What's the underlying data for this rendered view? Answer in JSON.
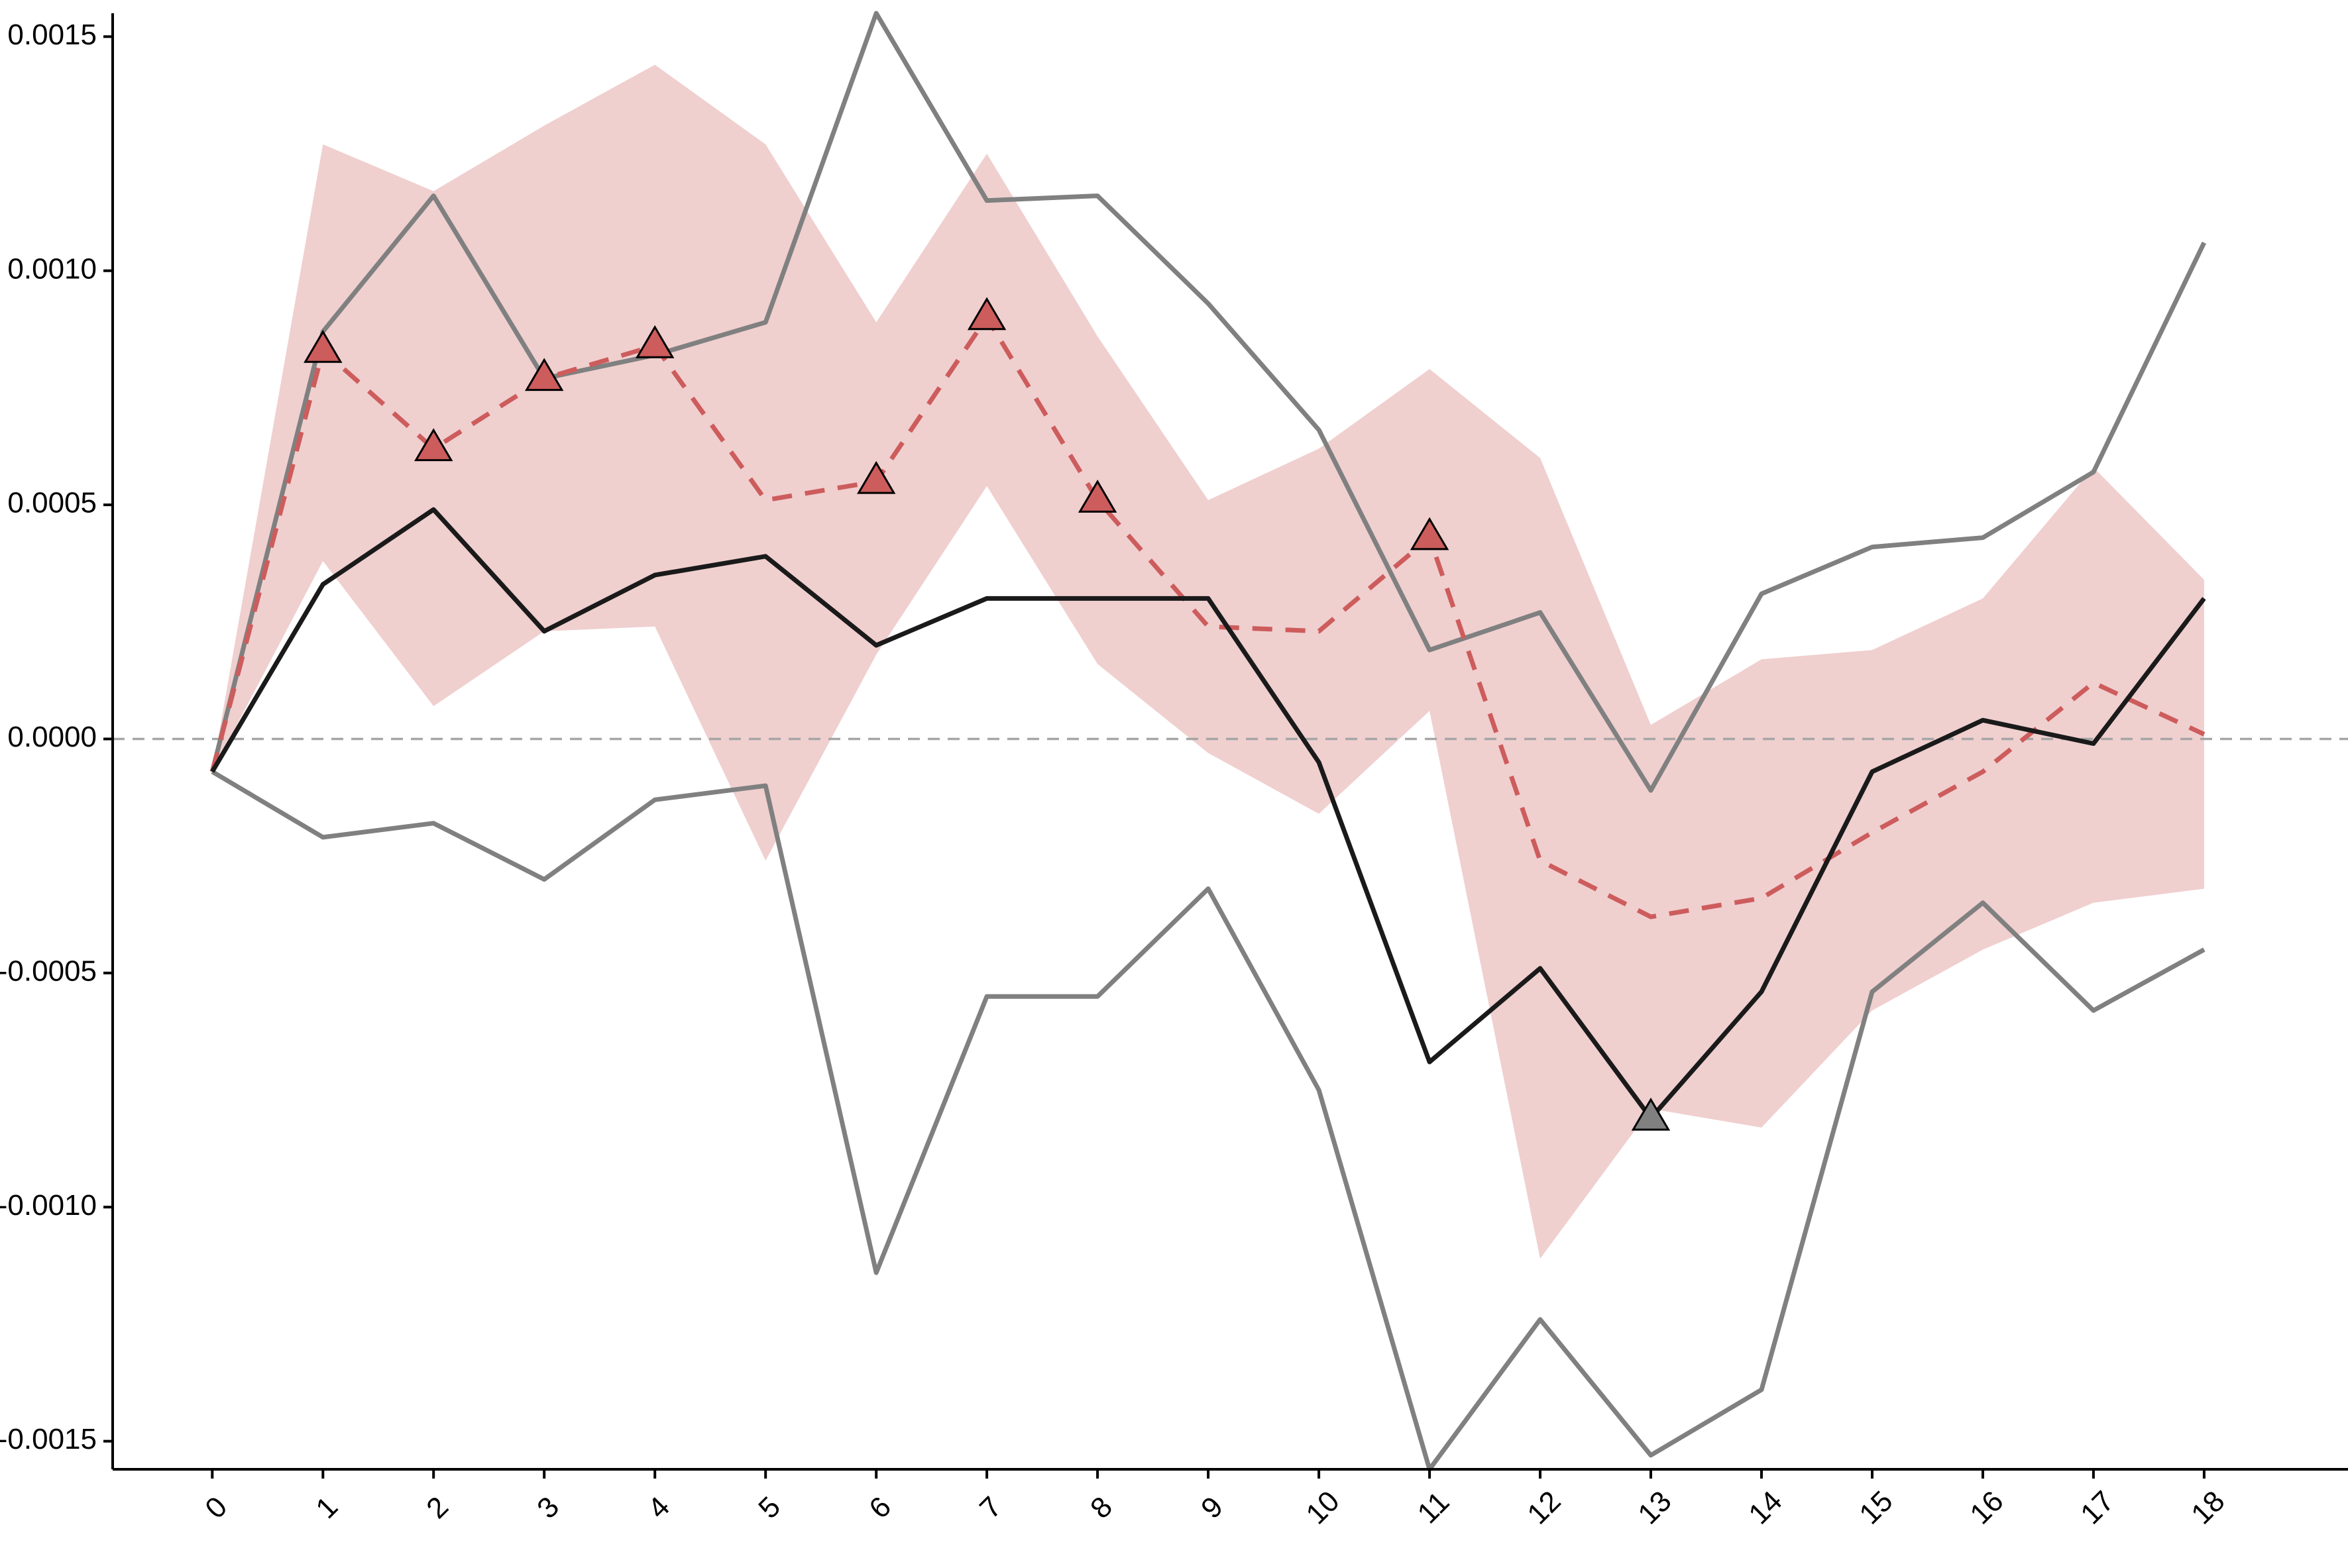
{
  "chart_data": {
    "type": "line",
    "title": "",
    "xlabel": "",
    "ylabel": "",
    "x": [
      0,
      1,
      2,
      3,
      4,
      5,
      6,
      7,
      8,
      9,
      10,
      11,
      12,
      13,
      14,
      15,
      16,
      17,
      18
    ],
    "x_tick_labels": [
      "0",
      "1",
      "2",
      "3",
      "4",
      "5",
      "6",
      "7",
      "8",
      "9",
      "10",
      "11",
      "12",
      "13",
      "14",
      "15",
      "16",
      "17",
      "18"
    ],
    "y_ticks": [
      -0.0015,
      -0.001,
      -0.0005,
      0.0,
      0.0005,
      0.001,
      0.0015
    ],
    "y_tick_labels": [
      "-0.0015",
      "-0.0010",
      "-0.0005",
      "0.0000",
      "0.0005",
      "0.0010",
      "0.0015"
    ],
    "ylim": [
      -0.00156,
      0.00155
    ],
    "xlim": [
      -0.9,
      19.3
    ],
    "grid": false,
    "zero_reference_line": {
      "y": 0.0,
      "style": "dashed",
      "color": "#a6a6a6"
    },
    "series": [
      {
        "role": "estimate",
        "style": "dashed",
        "color": "#cd5c5c",
        "band_color": "#f0cfcf",
        "values": [
          -7e-05,
          0.00083,
          0.00062,
          0.00077,
          0.00084,
          0.00051,
          0.00055,
          0.0009,
          0.00051,
          0.00024,
          0.00023,
          0.00043,
          -0.00026,
          -0.00038,
          -0.00034,
          -0.0002,
          -7e-05,
          0.00012,
          1e-05
        ],
        "lower": [
          -7e-05,
          0.00038,
          7e-05,
          0.00023,
          0.00024,
          -0.00026,
          0.00018,
          0.00054,
          0.00016,
          -3e-05,
          -0.00016,
          6e-05,
          -0.00111,
          -0.00079,
          -0.00083,
          -0.00058,
          -0.00045,
          -0.00035,
          -0.00032
        ],
        "upper": [
          -7e-05,
          0.00127,
          0.00117,
          0.00131,
          0.00144,
          0.00127,
          0.00089,
          0.00125,
          0.00086,
          0.00051,
          0.00062,
          0.00079,
          0.0006,
          3e-05,
          0.00017,
          0.00019,
          0.0003,
          0.00058,
          0.00034
        ],
        "triangle_markers_at": [
          1,
          2,
          3,
          4,
          6,
          7,
          8,
          11
        ]
      },
      {
        "role": "estimate",
        "style": "solid",
        "color": "#1a1a1a",
        "values": [
          -7e-05,
          0.00033,
          0.00049,
          0.00023,
          0.00035,
          0.00039,
          0.0002,
          0.0003,
          0.0003,
          0.0003,
          -5e-05,
          -0.00069,
          -0.00049,
          -0.00081,
          -0.00054,
          -7e-05,
          4e-05,
          -1e-05,
          0.0003
        ],
        "triangle_markers_at": [
          13
        ],
        "marker_color": "#808080"
      },
      {
        "role": "band-upper",
        "style": "solid",
        "color": "#808080",
        "values": [
          -7e-05,
          0.00087,
          0.00116,
          0.00077,
          0.00082,
          0.00089,
          0.00155,
          0.00115,
          0.00116,
          0.00093,
          0.00066,
          0.00019,
          0.00027,
          -0.00011,
          0.00031,
          0.00041,
          0.00043,
          0.00057,
          0.00106
        ]
      },
      {
        "role": "band-lower",
        "style": "solid",
        "color": "#808080",
        "values": [
          -7e-05,
          -0.00021,
          -0.00018,
          -0.0003,
          -0.00013,
          -0.0001,
          -0.00114,
          -0.00055,
          -0.00055,
          -0.00032,
          -0.00075,
          -0.00156,
          -0.00124,
          -0.00153,
          -0.00139,
          -0.00054,
          -0.00035,
          -0.00058,
          -0.00045
        ]
      }
    ]
  }
}
